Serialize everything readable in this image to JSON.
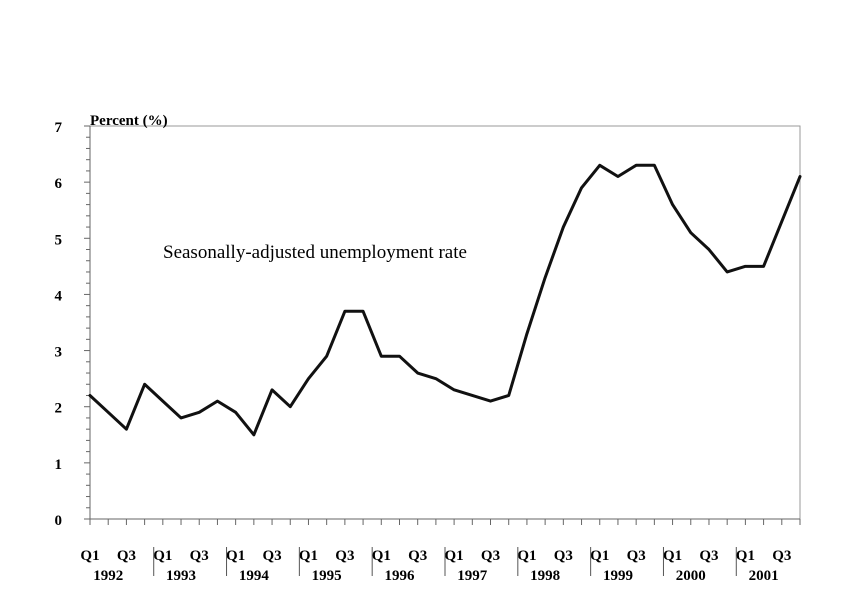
{
  "chart_data": {
    "type": "line",
    "ylabel": "Percent (%)",
    "annotation": "Seasonally-adjusted unemployment rate",
    "ylim": [
      0,
      7
    ],
    "yticks": [
      "0",
      "1",
      "2",
      "3",
      "4",
      "5",
      "6",
      "7"
    ],
    "grid": false,
    "legend": "none",
    "line_color": "#111111",
    "quarter_tick_labels": [
      "Q1",
      "Q3"
    ],
    "years": [
      "1992",
      "1993",
      "1994",
      "1995",
      "1996",
      "1997",
      "1998",
      "1999",
      "2000",
      "2001"
    ],
    "categories": [
      "1992 Q1",
      "1992 Q2",
      "1992 Q3",
      "1992 Q4",
      "1993 Q1",
      "1993 Q2",
      "1993 Q3",
      "1993 Q4",
      "1994 Q1",
      "1994 Q2",
      "1994 Q3",
      "1994 Q4",
      "1995 Q1",
      "1995 Q2",
      "1995 Q3",
      "1995 Q4",
      "1996 Q1",
      "1996 Q2",
      "1996 Q3",
      "1996 Q4",
      "1997 Q1",
      "1997 Q2",
      "1997 Q3",
      "1997 Q4",
      "1998 Q1",
      "1998 Q2",
      "1998 Q3",
      "1998 Q4",
      "1999 Q1",
      "1999 Q2",
      "1999 Q3",
      "1999 Q4",
      "2000 Q1",
      "2000 Q2",
      "2000 Q3",
      "2000 Q4",
      "2001 Q1",
      "2001 Q2",
      "2001 Q3",
      "2001 Q4"
    ],
    "values": [
      2.2,
      1.9,
      1.6,
      2.4,
      2.1,
      1.8,
      1.9,
      2.1,
      1.9,
      1.5,
      2.3,
      2.0,
      2.5,
      2.9,
      3.7,
      3.7,
      2.9,
      2.9,
      2.6,
      2.5,
      2.3,
      2.2,
      2.1,
      2.2,
      3.3,
      4.3,
      5.2,
      5.9,
      6.3,
      6.1,
      6.3,
      6.3,
      5.6,
      5.1,
      4.8,
      4.4,
      4.5,
      4.5,
      5.3,
      6.1
    ]
  }
}
